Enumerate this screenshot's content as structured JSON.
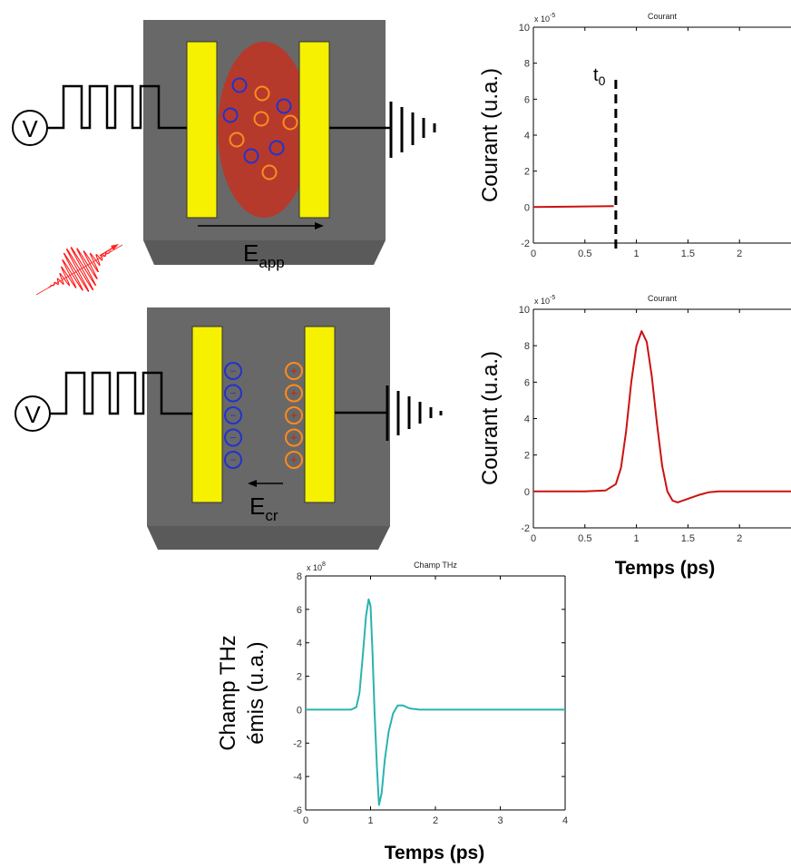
{
  "diagram": {
    "field_applied": {
      "base": "E",
      "sub": "app"
    },
    "field_created": {
      "base": "E",
      "sub": "cr"
    },
    "t0": {
      "base": "t",
      "sub": "0"
    },
    "voltmeter": "V",
    "charge_minus": "−",
    "charge_plus": "+"
  },
  "chart_data": [
    {
      "type": "line",
      "title": "Courant",
      "exponent_base": "x 10",
      "exponent_power": "-5",
      "ylabel": "Courant (u.a.)",
      "xlabel": "",
      "xlim": [
        0,
        2.5
      ],
      "ylim": [
        -2,
        10
      ],
      "xticks": [
        "0",
        "0.5",
        "1",
        "1.5",
        "2"
      ],
      "yticks": [
        "-2",
        "0",
        "2",
        "4",
        "6",
        "8",
        "10"
      ],
      "marker_x": 0.8,
      "series": [
        {
          "color": "#cc1111",
          "x": [
            0,
            0.78
          ],
          "y": [
            0,
            0.05
          ]
        }
      ]
    },
    {
      "type": "line",
      "title": "Courant",
      "exponent_base": "x 10",
      "exponent_power": "-5",
      "ylabel": "Courant (u.a.)",
      "xlabel": "Temps (ps)",
      "xlim": [
        0,
        2.5
      ],
      "ylim": [
        -2,
        10
      ],
      "xticks": [
        "0",
        "0.5",
        "1",
        "1.5",
        "2"
      ],
      "yticks": [
        "-2",
        "0",
        "2",
        "4",
        "6",
        "8",
        "10"
      ],
      "series": [
        {
          "color": "#cc1111",
          "x": [
            0,
            0.5,
            0.7,
            0.8,
            0.85,
            0.9,
            0.95,
            1.0,
            1.05,
            1.1,
            1.15,
            1.2,
            1.25,
            1.3,
            1.35,
            1.4,
            1.5,
            1.6,
            1.7,
            1.8,
            2.0,
            2.5
          ],
          "y": [
            0,
            0,
            0.05,
            0.4,
            1.3,
            3.3,
            6.0,
            8.0,
            8.8,
            8.2,
            6.3,
            3.7,
            1.4,
            0.0,
            -0.5,
            -0.6,
            -0.4,
            -0.2,
            -0.05,
            0,
            0,
            0
          ]
        }
      ]
    },
    {
      "type": "line",
      "title": "Champ THz",
      "exponent_base": "x 10",
      "exponent_power": "8",
      "ylabel": "Champ THz\némis (u.a.)",
      "xlabel": "Temps (ps)",
      "xlim": [
        0,
        4
      ],
      "ylim": [
        -6,
        8
      ],
      "xticks": [
        "0",
        "1",
        "2",
        "3",
        "4"
      ],
      "yticks": [
        "-6",
        "-4",
        "-2",
        "0",
        "2",
        "4",
        "6",
        "8"
      ],
      "series": [
        {
          "color": "#2ab3b0",
          "x": [
            0,
            0.7,
            0.78,
            0.83,
            0.88,
            0.93,
            0.97,
            1.0,
            1.03,
            1.06,
            1.1,
            1.13,
            1.17,
            1.22,
            1.28,
            1.35,
            1.42,
            1.5,
            1.6,
            1.75,
            2.0,
            4.0
          ],
          "y": [
            0,
            0,
            0.15,
            1.0,
            3.2,
            5.6,
            6.6,
            6.2,
            3.5,
            0,
            -3.5,
            -5.7,
            -5.0,
            -3.0,
            -1.3,
            -0.2,
            0.25,
            0.25,
            0.08,
            0,
            0,
            0
          ]
        }
      ]
    }
  ]
}
